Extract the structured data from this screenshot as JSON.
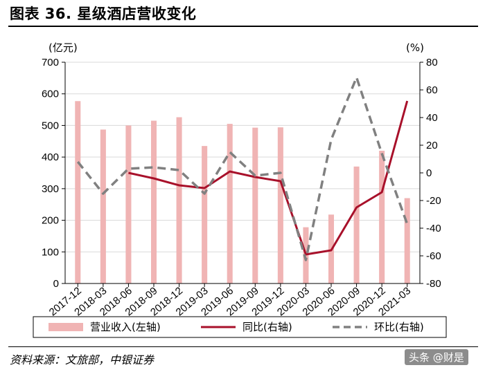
{
  "header": {
    "title": "图表 36. 星级酒店营收变化"
  },
  "footer": {
    "source": "资料来源：文旅部，中银证券",
    "watermark": "头条 @财是"
  },
  "chart_data": {
    "type": "bar",
    "categories": [
      "2017-12",
      "2018-03",
      "2018-06",
      "2018-09",
      "2018-12",
      "2019-03",
      "2019-06",
      "2019-09",
      "2019-12",
      "2020-03",
      "2020-06",
      "2020-09",
      "2020-12",
      "2021-03"
    ],
    "y_left": {
      "label": "(亿元)",
      "lim": [
        0,
        700
      ],
      "ticks": [
        0,
        100,
        200,
        300,
        400,
        500,
        600,
        700
      ]
    },
    "y_right": {
      "label": "(%)",
      "lim": [
        -80,
        80
      ],
      "ticks": [
        -80,
        -60,
        -40,
        -20,
        0,
        20,
        40,
        60,
        80
      ]
    },
    "grid": true,
    "legend_position": "bottom",
    "colors": {
      "bar": "#f0b4b4",
      "yoy": "#a8102a",
      "qoq": "#808080",
      "grid": "#d9d9d9"
    },
    "series": [
      {
        "name": "营业收入(左轴)",
        "kind": "bar",
        "axis": "left",
        "values": [
          577,
          487,
          500,
          515,
          526,
          435,
          505,
          493,
          494,
          178,
          218,
          370,
          420,
          270
        ]
      },
      {
        "name": "同比(右轴)",
        "kind": "line",
        "axis": "right",
        "values": [
          null,
          null,
          0,
          -4,
          -9,
          -11,
          1,
          -3,
          -6,
          -59,
          -56,
          -25,
          -14,
          52
        ]
      },
      {
        "name": "环比(右轴)",
        "kind": "dashed-line",
        "axis": "right",
        "values": [
          8,
          -15,
          3,
          4,
          2,
          -15,
          15,
          -2,
          0,
          -63,
          24,
          69,
          14,
          -37
        ]
      }
    ]
  }
}
